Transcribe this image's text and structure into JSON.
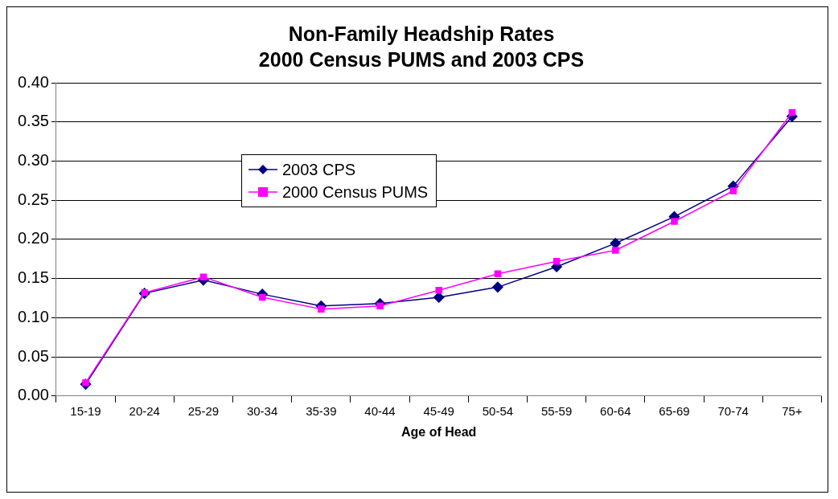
{
  "chart_data": {
    "type": "line",
    "title": "Non-Family Headship Rates",
    "subtitle": "2000 Census PUMS and 2003 CPS",
    "xlabel": "Age of Head",
    "categories": [
      "15-19",
      "20-24",
      "25-29",
      "30-34",
      "35-39",
      "40-44",
      "45-49",
      "50-54",
      "55-59",
      "60-64",
      "65-69",
      "70-74",
      "75+"
    ],
    "series": [
      {
        "name": "2003 CPS",
        "color": "#000080",
        "marker": "diamond",
        "values": [
          0.015,
          0.131,
          0.148,
          0.13,
          0.115,
          0.118,
          0.126,
          0.139,
          0.165,
          0.195,
          0.229,
          0.268,
          0.357
        ]
      },
      {
        "name": "2000 Census PUMS",
        "color": "#ff00ff",
        "marker": "square",
        "values": [
          0.017,
          0.132,
          0.152,
          0.126,
          0.111,
          0.115,
          0.135,
          0.156,
          0.172,
          0.186,
          0.223,
          0.262,
          0.362
        ]
      }
    ],
    "ylim": [
      0,
      0.4
    ],
    "yticks": [
      {
        "value": 0,
        "label": "0.00"
      },
      {
        "value": 0.05,
        "label": "0.05"
      },
      {
        "value": 0.1,
        "label": "0.10"
      },
      {
        "value": 0.15,
        "label": "0.15"
      },
      {
        "value": 0.2,
        "label": "0.20"
      },
      {
        "value": 0.25,
        "label": "0.25"
      },
      {
        "value": 0.3,
        "label": "0.30"
      },
      {
        "value": 0.35,
        "label": "0.35"
      },
      {
        "value": 0.4,
        "label": "0.40"
      }
    ],
    "grid": "y",
    "legend": "top left"
  }
}
